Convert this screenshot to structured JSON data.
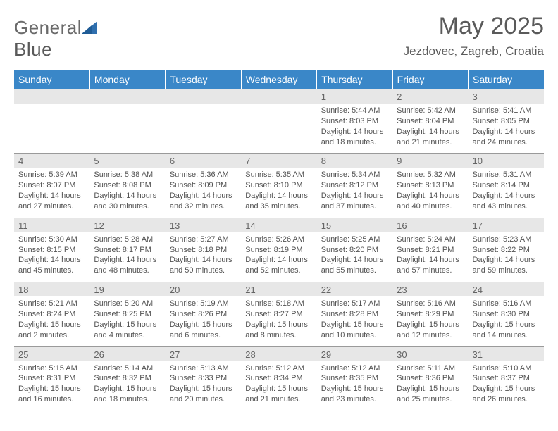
{
  "brand": {
    "word1": "General",
    "word2": "Blue"
  },
  "title": "May 2025",
  "location": "Jezdovec, Zagreb, Croatia",
  "colors": {
    "header_bg": "#3a87c8",
    "header_fg": "#ffffff",
    "daynum_bg": "#e7e7e7",
    "text": "#525252",
    "rule": "#9a9a9a",
    "logo_blue": "#2f6fae"
  },
  "typography": {
    "title_fontsize": 34,
    "location_fontsize": 17,
    "weekday_fontsize": 14,
    "daynum_fontsize": 13,
    "body_fontsize": 11
  },
  "weekdays": [
    "Sunday",
    "Monday",
    "Tuesday",
    "Wednesday",
    "Thursday",
    "Friday",
    "Saturday"
  ],
  "weeks": [
    [
      {
        "n": "",
        "lines": []
      },
      {
        "n": "",
        "lines": []
      },
      {
        "n": "",
        "lines": []
      },
      {
        "n": "",
        "lines": []
      },
      {
        "n": "1",
        "lines": [
          "Sunrise: 5:44 AM",
          "Sunset: 8:03 PM",
          "Daylight: 14 hours and 18 minutes."
        ]
      },
      {
        "n": "2",
        "lines": [
          "Sunrise: 5:42 AM",
          "Sunset: 8:04 PM",
          "Daylight: 14 hours and 21 minutes."
        ]
      },
      {
        "n": "3",
        "lines": [
          "Sunrise: 5:41 AM",
          "Sunset: 8:05 PM",
          "Daylight: 14 hours and 24 minutes."
        ]
      }
    ],
    [
      {
        "n": "4",
        "lines": [
          "Sunrise: 5:39 AM",
          "Sunset: 8:07 PM",
          "Daylight: 14 hours and 27 minutes."
        ]
      },
      {
        "n": "5",
        "lines": [
          "Sunrise: 5:38 AM",
          "Sunset: 8:08 PM",
          "Daylight: 14 hours and 30 minutes."
        ]
      },
      {
        "n": "6",
        "lines": [
          "Sunrise: 5:36 AM",
          "Sunset: 8:09 PM",
          "Daylight: 14 hours and 32 minutes."
        ]
      },
      {
        "n": "7",
        "lines": [
          "Sunrise: 5:35 AM",
          "Sunset: 8:10 PM",
          "Daylight: 14 hours and 35 minutes."
        ]
      },
      {
        "n": "8",
        "lines": [
          "Sunrise: 5:34 AM",
          "Sunset: 8:12 PM",
          "Daylight: 14 hours and 37 minutes."
        ]
      },
      {
        "n": "9",
        "lines": [
          "Sunrise: 5:32 AM",
          "Sunset: 8:13 PM",
          "Daylight: 14 hours and 40 minutes."
        ]
      },
      {
        "n": "10",
        "lines": [
          "Sunrise: 5:31 AM",
          "Sunset: 8:14 PM",
          "Daylight: 14 hours and 43 minutes."
        ]
      }
    ],
    [
      {
        "n": "11",
        "lines": [
          "Sunrise: 5:30 AM",
          "Sunset: 8:15 PM",
          "Daylight: 14 hours and 45 minutes."
        ]
      },
      {
        "n": "12",
        "lines": [
          "Sunrise: 5:28 AM",
          "Sunset: 8:17 PM",
          "Daylight: 14 hours and 48 minutes."
        ]
      },
      {
        "n": "13",
        "lines": [
          "Sunrise: 5:27 AM",
          "Sunset: 8:18 PM",
          "Daylight: 14 hours and 50 minutes."
        ]
      },
      {
        "n": "14",
        "lines": [
          "Sunrise: 5:26 AM",
          "Sunset: 8:19 PM",
          "Daylight: 14 hours and 52 minutes."
        ]
      },
      {
        "n": "15",
        "lines": [
          "Sunrise: 5:25 AM",
          "Sunset: 8:20 PM",
          "Daylight: 14 hours and 55 minutes."
        ]
      },
      {
        "n": "16",
        "lines": [
          "Sunrise: 5:24 AM",
          "Sunset: 8:21 PM",
          "Daylight: 14 hours and 57 minutes."
        ]
      },
      {
        "n": "17",
        "lines": [
          "Sunrise: 5:23 AM",
          "Sunset: 8:22 PM",
          "Daylight: 14 hours and 59 minutes."
        ]
      }
    ],
    [
      {
        "n": "18",
        "lines": [
          "Sunrise: 5:21 AM",
          "Sunset: 8:24 PM",
          "Daylight: 15 hours and 2 minutes."
        ]
      },
      {
        "n": "19",
        "lines": [
          "Sunrise: 5:20 AM",
          "Sunset: 8:25 PM",
          "Daylight: 15 hours and 4 minutes."
        ]
      },
      {
        "n": "20",
        "lines": [
          "Sunrise: 5:19 AM",
          "Sunset: 8:26 PM",
          "Daylight: 15 hours and 6 minutes."
        ]
      },
      {
        "n": "21",
        "lines": [
          "Sunrise: 5:18 AM",
          "Sunset: 8:27 PM",
          "Daylight: 15 hours and 8 minutes."
        ]
      },
      {
        "n": "22",
        "lines": [
          "Sunrise: 5:17 AM",
          "Sunset: 8:28 PM",
          "Daylight: 15 hours and 10 minutes."
        ]
      },
      {
        "n": "23",
        "lines": [
          "Sunrise: 5:16 AM",
          "Sunset: 8:29 PM",
          "Daylight: 15 hours and 12 minutes."
        ]
      },
      {
        "n": "24",
        "lines": [
          "Sunrise: 5:16 AM",
          "Sunset: 8:30 PM",
          "Daylight: 15 hours and 14 minutes."
        ]
      }
    ],
    [
      {
        "n": "25",
        "lines": [
          "Sunrise: 5:15 AM",
          "Sunset: 8:31 PM",
          "Daylight: 15 hours and 16 minutes."
        ]
      },
      {
        "n": "26",
        "lines": [
          "Sunrise: 5:14 AM",
          "Sunset: 8:32 PM",
          "Daylight: 15 hours and 18 minutes."
        ]
      },
      {
        "n": "27",
        "lines": [
          "Sunrise: 5:13 AM",
          "Sunset: 8:33 PM",
          "Daylight: 15 hours and 20 minutes."
        ]
      },
      {
        "n": "28",
        "lines": [
          "Sunrise: 5:12 AM",
          "Sunset: 8:34 PM",
          "Daylight: 15 hours and 21 minutes."
        ]
      },
      {
        "n": "29",
        "lines": [
          "Sunrise: 5:12 AM",
          "Sunset: 8:35 PM",
          "Daylight: 15 hours and 23 minutes."
        ]
      },
      {
        "n": "30",
        "lines": [
          "Sunrise: 5:11 AM",
          "Sunset: 8:36 PM",
          "Daylight: 15 hours and 25 minutes."
        ]
      },
      {
        "n": "31",
        "lines": [
          "Sunrise: 5:10 AM",
          "Sunset: 8:37 PM",
          "Daylight: 15 hours and 26 minutes."
        ]
      }
    ]
  ]
}
